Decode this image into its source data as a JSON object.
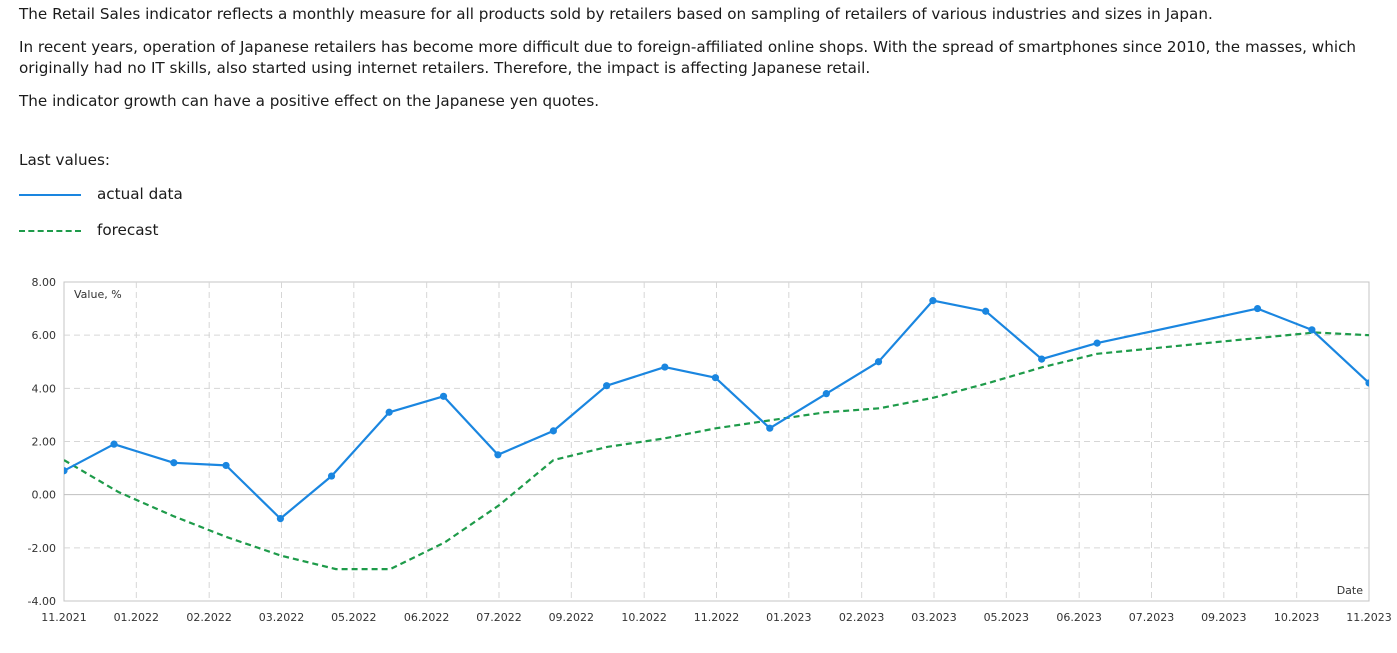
{
  "description": {
    "p1": "The Retail Sales indicator reflects a monthly measure for all products sold by retailers based on sampling of retailers of various industries and sizes in Japan.",
    "p2": "In recent years, operation of Japanese retailers has become more difficult due to foreign-affiliated online shops. With the spread of smartphones since 2010, the masses, which originally had no IT skills, also started using internet retailers. Therefore, the impact is affecting Japanese retail.",
    "p3": "The indicator growth can have a positive effect on the Japanese yen quotes."
  },
  "last_values_label": "Last values:",
  "legend": {
    "actual": "actual data",
    "forecast": "forecast"
  },
  "colors": {
    "actual": "#1a86e0",
    "forecast": "#1e9b4a",
    "grid": "#d6d6d6",
    "zero_line": "#bfbfbf",
    "axis_text": "#333333"
  },
  "chart_data": {
    "type": "line",
    "ylabel": "Value, %",
    "xlabel": "Date",
    "ylim": [
      -4,
      8
    ],
    "yticks": [
      "8.00",
      "6.00",
      "4.00",
      "2.00",
      "0.00",
      "-2.00",
      "-4.00"
    ],
    "ytick_values": [
      8,
      6,
      4,
      2,
      0,
      -2,
      -4
    ],
    "grid": true,
    "xlim": [
      0,
      24
    ],
    "xtick_labels": [
      "11.2021",
      "01.2022",
      "02.2022",
      "03.2022",
      "05.2022",
      "06.2022",
      "07.2022",
      "09.2022",
      "10.2022",
      "11.2022",
      "01.2023",
      "02.2023",
      "03.2023",
      "05.2023",
      "06.2023",
      "07.2023",
      "09.2023",
      "10.2023",
      "11.2023"
    ],
    "xtick_positions": [
      0,
      1.33,
      2.67,
      4,
      5.33,
      6.67,
      8,
      9.33,
      10.67,
      12,
      13.33,
      14.67,
      16,
      17.33,
      18.67,
      20,
      21.33,
      22.67,
      24
    ],
    "series": [
      {
        "name": "actual data",
        "style": "solid",
        "x": [
          0,
          0.92,
          2.02,
          2.98,
          3.98,
          4.92,
          5.98,
          6.98,
          7.98,
          9.0,
          9.98,
          11.05,
          11.98,
          12.98,
          14.02,
          14.98,
          15.98,
          16.95,
          17.98,
          19.0,
          20.98,
          21.95,
          22.95,
          24.0
        ],
        "y": [
          0.9,
          1.9,
          1.2,
          1.1,
          -0.9,
          0.7,
          3.1,
          3.7,
          1.5,
          2.4,
          4.1,
          4.8,
          4.4,
          2.5,
          3.8,
          5.0,
          7.3,
          6.9,
          5.1,
          5.7,
          null,
          7.0,
          6.2,
          4.2
        ]
      },
      {
        "name": "forecast",
        "style": "dashed",
        "x": [
          0,
          1.0,
          2.0,
          3.0,
          4.0,
          5.0,
          6.0,
          7.0,
          8.0,
          9.0,
          10.0,
          11.0,
          12.0,
          13.0,
          14.0,
          15.0,
          16.0,
          17.0,
          18.0,
          19.0,
          20.0,
          21.0,
          22.0,
          23.0,
          24.0
        ],
        "y": [
          1.3,
          0.1,
          -0.8,
          -1.6,
          -2.3,
          -2.8,
          -2.8,
          -1.8,
          -0.4,
          1.3,
          1.8,
          2.1,
          2.5,
          2.8,
          3.1,
          3.25,
          3.65,
          4.2,
          4.8,
          5.3,
          5.5,
          5.7,
          5.9,
          6.1,
          6.0
        ]
      }
    ]
  }
}
